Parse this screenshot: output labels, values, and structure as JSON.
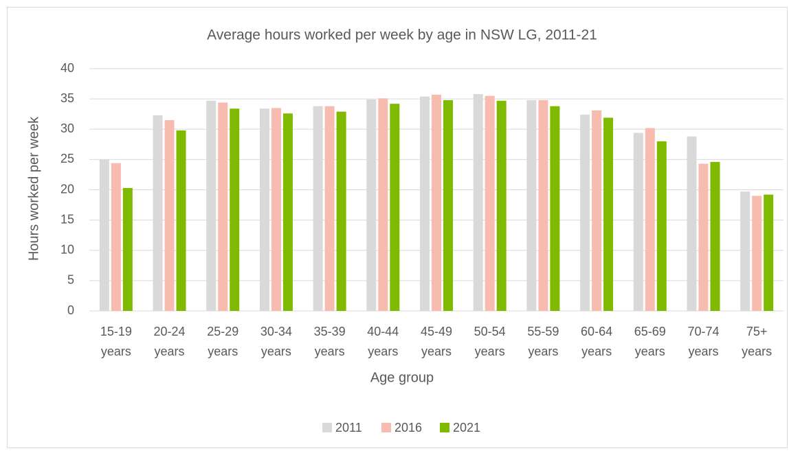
{
  "chart_data": {
    "type": "bar",
    "title": "Average hours worked per week by age in NSW LG, 2011-21",
    "x_label": "Age group",
    "y_label": "Hours worked per week",
    "categories": [
      "15-19 years",
      "20-24 years",
      "25-29 years",
      "30-34 years",
      "35-39 years",
      "40-44 years",
      "45-49 years",
      "50-54 years",
      "55-59 years",
      "60-64 years",
      "65-69 years",
      "70-74 years",
      "75+ years"
    ],
    "series": [
      {
        "name": "2011",
        "color": "#d9d9d9",
        "values": [
          25.0,
          32.3,
          34.7,
          33.4,
          33.8,
          34.9,
          35.4,
          35.8,
          34.8,
          32.4,
          29.4,
          28.8,
          19.7
        ]
      },
      {
        "name": "2016",
        "color": "#f8bbb0",
        "values": [
          24.4,
          31.5,
          34.4,
          33.5,
          33.8,
          35.1,
          35.7,
          35.5,
          34.8,
          33.1,
          30.2,
          24.3,
          19.0
        ]
      },
      {
        "name": "2021",
        "color": "#7fba00",
        "values": [
          20.3,
          29.8,
          33.4,
          32.6,
          32.9,
          34.2,
          34.8,
          34.7,
          33.8,
          31.9,
          28.0,
          24.6,
          19.2
        ]
      }
    ],
    "ylim": [
      0,
      40
    ],
    "yticks": [
      0,
      5,
      10,
      15,
      20,
      25,
      30,
      35,
      40
    ],
    "grid": true,
    "legend": "bottom"
  }
}
